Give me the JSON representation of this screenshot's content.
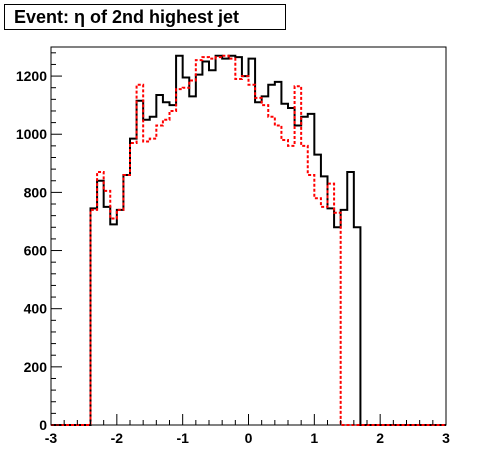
{
  "chart_data": {
    "type": "histogram",
    "title": "Event: η of 2nd highest jet",
    "xlabel": "",
    "ylabel": "",
    "xlim": [
      -3,
      3
    ],
    "ylim": [
      0,
      1300
    ],
    "x_ticks": [
      -3,
      -2,
      -1,
      0,
      1,
      2,
      3
    ],
    "y_ticks": [
      0,
      200,
      400,
      600,
      800,
      1000,
      1200
    ],
    "grid": false,
    "bin_edges": [
      -3.0,
      -2.9,
      -2.8,
      -2.7,
      -2.6,
      -2.5,
      -2.4,
      -2.3,
      -2.2,
      -2.1,
      -2.0,
      -1.9,
      -1.8,
      -1.7,
      -1.6,
      -1.5,
      -1.4,
      -1.3,
      -1.2,
      -1.1,
      -1.0,
      -0.9,
      -0.8,
      -0.7,
      -0.6,
      -0.5,
      -0.4,
      -0.3,
      -0.2,
      -0.1,
      0.0,
      0.1,
      0.2,
      0.3,
      0.4,
      0.5,
      0.6,
      0.7,
      0.8,
      0.9,
      1.0,
      1.1,
      1.2,
      1.3,
      1.4,
      1.5,
      1.6,
      1.7,
      1.8,
      1.9,
      2.0,
      2.1,
      2.2,
      2.3,
      2.4,
      2.5,
      2.6,
      2.7,
      2.8,
      2.9,
      3.0
    ],
    "series": [
      {
        "style": "solid",
        "color": "#000000",
        "values": [
          0,
          0,
          0,
          0,
          0,
          0,
          745,
          840,
          750,
          690,
          740,
          860,
          985,
          1115,
          1050,
          1060,
          1135,
          1110,
          1100,
          1270,
          1195,
          1130,
          1205,
          1250,
          1220,
          1270,
          1260,
          1270,
          1265,
          1200,
          1260,
          1110,
          1130,
          1170,
          1180,
          1105,
          1090,
          1030,
          1060,
          1070,
          930,
          855,
          745,
          680,
          740,
          870,
          680,
          0,
          0,
          0,
          0,
          0,
          0,
          0,
          0,
          0,
          0,
          0,
          0,
          0
        ]
      },
      {
        "style": "dashed",
        "color": "#ff0000",
        "values": [
          0,
          0,
          0,
          0,
          0,
          0,
          740,
          870,
          805,
          710,
          740,
          860,
          970,
          1170,
          975,
          985,
          1030,
          1050,
          1080,
          1155,
          1160,
          1185,
          1255,
          1265,
          1260,
          1265,
          1270,
          1260,
          1190,
          1200,
          1170,
          1125,
          1100,
          1060,
          1030,
          980,
          960,
          1165,
          960,
          860,
          780,
          750,
          830,
          730,
          0,
          0,
          0,
          0,
          0,
          0,
          0,
          0,
          0,
          0,
          0,
          0,
          0,
          0,
          0,
          0
        ]
      }
    ]
  }
}
